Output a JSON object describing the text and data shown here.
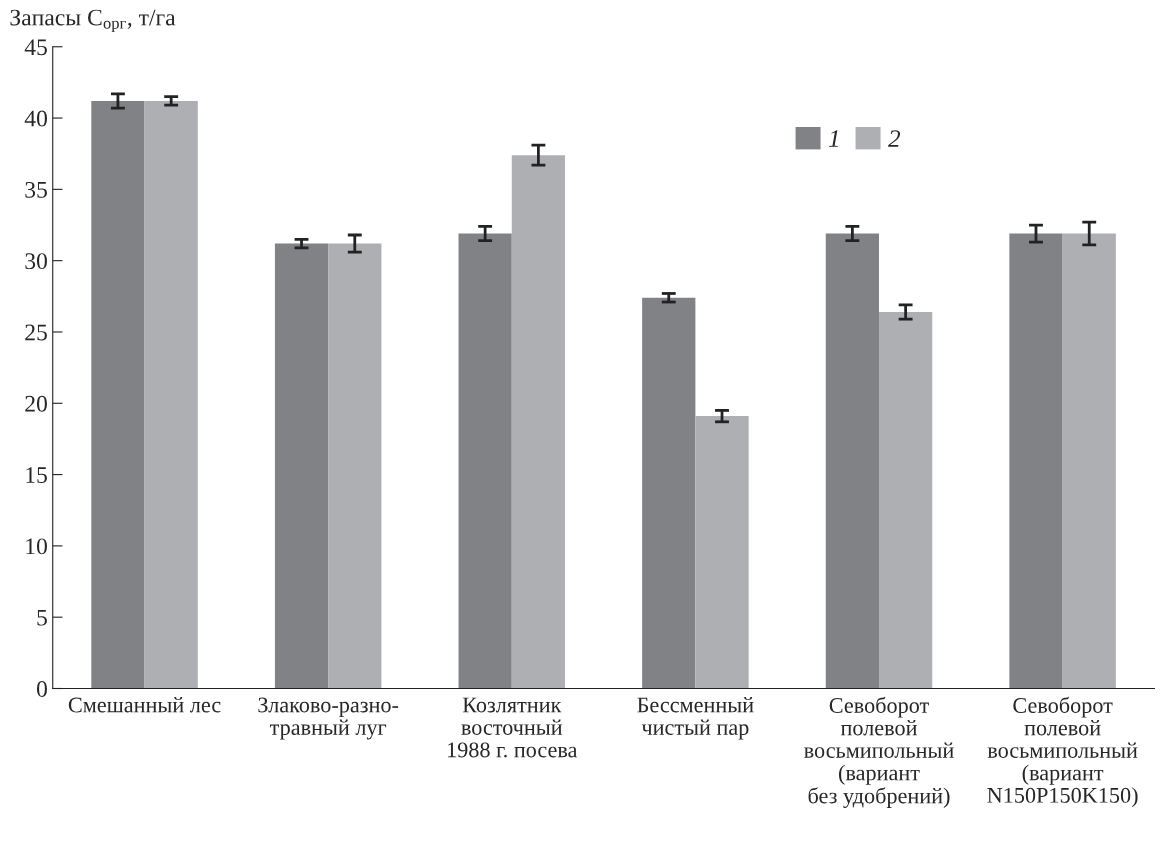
{
  "chart_data": {
    "type": "bar",
    "ylabel": "Запасы C$_{орг}$, т/га",
    "categories": [
      "Смешанный лес",
      "Злаково-разно-\nтравный луг",
      "Козлятник\nвосточный\n1988 г. посева",
      "Бессменный\nчистый пар",
      "Севоборот\nполевой\nвосьмипольный\n(вариант\nбез удобрений)",
      "Севоборот\nполевой\nвосьмипольный\n(вариант\nN150P150K150)"
    ],
    "series": [
      {
        "name": "1",
        "color": "#818286",
        "values": [
          41.2,
          31.2,
          31.9,
          27.4,
          31.9,
          31.9
        ],
        "errors": [
          0.5,
          0.3,
          0.5,
          0.3,
          0.5,
          0.6
        ]
      },
      {
        "name": "2",
        "color": "#aeafb3",
        "values": [
          41.2,
          31.2,
          37.4,
          19.1,
          26.4,
          31.9
        ],
        "errors": [
          0.3,
          0.6,
          0.7,
          0.4,
          0.5,
          0.8
        ]
      }
    ],
    "ylim": [
      0,
      45
    ],
    "yticks": [
      0,
      5,
      10,
      15,
      20,
      25,
      30,
      35,
      40,
      45
    ],
    "grid": false,
    "legend": "top right"
  }
}
